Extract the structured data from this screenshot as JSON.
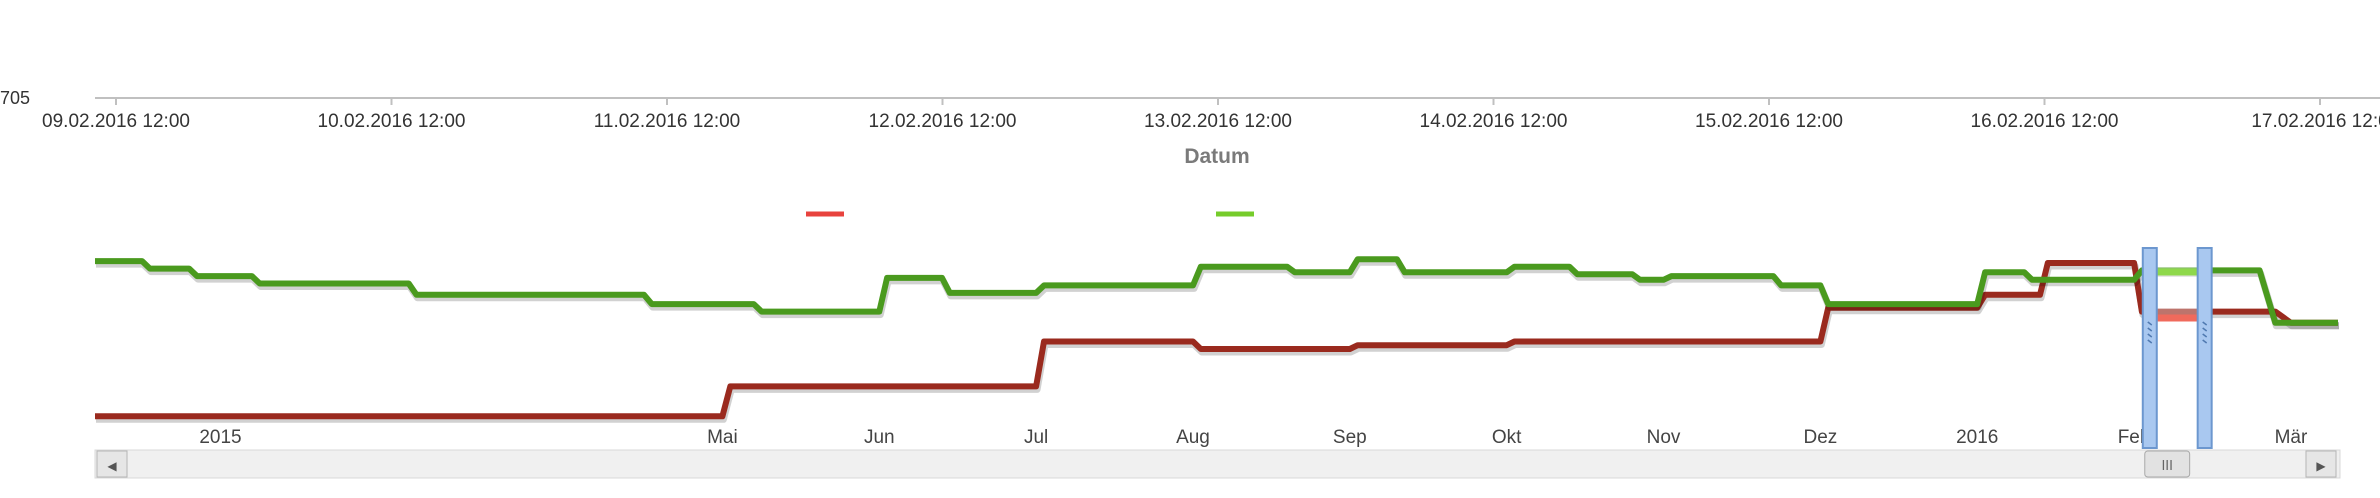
{
  "chart_data": [
    {
      "type": "line",
      "title": "",
      "y_tick_label": "705",
      "x_axis": {
        "title": "Datum",
        "ticks": [
          "09.02.2016 12:00",
          "10.02.2016 12:00",
          "11.02.2016 12:00",
          "12.02.2016 12:00",
          "13.02.2016 12:00",
          "14.02.2016 12:00",
          "15.02.2016 12:00",
          "16.02.2016 12:00",
          "17.02.2016 12:0"
        ]
      },
      "legend": {
        "placement": "top-center",
        "series_colors": [
          "#e8433d",
          "#76cc2b"
        ]
      },
      "series": [
        {
          "color": "#e8433d",
          "values": []
        },
        {
          "color": "#76cc2b",
          "values": []
        }
      ],
      "grid": false
    },
    {
      "type": "line",
      "role": "navigator",
      "x_labels": [
        "2015",
        "Mai",
        "Jun",
        "Jul",
        "Aug",
        "Sep",
        "Okt",
        "Nov",
        "Dez",
        "2016",
        "Feb",
        "Mär"
      ],
      "x_label_positions_months": [
        0.8,
        4.0,
        5.0,
        6.0,
        7.0,
        8.0,
        9.0,
        10.0,
        11.0,
        12.0,
        13.0,
        14.0
      ],
      "x_domain_months": [
        0,
        14.3
      ],
      "y_domain": [
        0,
        100
      ],
      "series": [
        {
          "color": "#9a2a1e",
          "step_points": [
            [
              0,
              10
            ],
            [
              1.6,
              10
            ],
            [
              4.0,
              10
            ],
            [
              4.05,
              26
            ],
            [
              6.0,
              26
            ],
            [
              6.05,
              50
            ],
            [
              7.0,
              50
            ],
            [
              7.05,
              46
            ],
            [
              8.0,
              46
            ],
            [
              8.05,
              48
            ],
            [
              9.0,
              48
            ],
            [
              9.05,
              50
            ],
            [
              11.0,
              50
            ],
            [
              11.05,
              68
            ],
            [
              12.0,
              68
            ],
            [
              12.05,
              75
            ],
            [
              12.4,
              75
            ],
            [
              12.45,
              92
            ],
            [
              13.0,
              92
            ],
            [
              13.05,
              66
            ],
            [
              13.9,
              66
            ],
            [
              14.0,
              60
            ],
            [
              14.3,
              60
            ]
          ]
        },
        {
          "color": "#4a9a1e",
          "step_points": [
            [
              0,
              93
            ],
            [
              0.3,
              93
            ],
            [
              0.35,
              89
            ],
            [
              0.6,
              89
            ],
            [
              0.65,
              85
            ],
            [
              1.0,
              85
            ],
            [
              1.05,
              81
            ],
            [
              2.0,
              81
            ],
            [
              2.05,
              75
            ],
            [
              3.5,
              75
            ],
            [
              3.55,
              70
            ],
            [
              4.2,
              70
            ],
            [
              4.25,
              66
            ],
            [
              5.0,
              66
            ],
            [
              5.05,
              84
            ],
            [
              5.4,
              84
            ],
            [
              5.45,
              76
            ],
            [
              6.0,
              76
            ],
            [
              6.05,
              80
            ],
            [
              7.0,
              80
            ],
            [
              7.05,
              90
            ],
            [
              7.6,
              90
            ],
            [
              7.65,
              87
            ],
            [
              8.0,
              87
            ],
            [
              8.05,
              94
            ],
            [
              8.3,
              94
            ],
            [
              8.35,
              87
            ],
            [
              9.0,
              87
            ],
            [
              9.05,
              90
            ],
            [
              9.4,
              90
            ],
            [
              9.45,
              86
            ],
            [
              9.8,
              86
            ],
            [
              9.85,
              83
            ],
            [
              10.0,
              83
            ],
            [
              10.05,
              85
            ],
            [
              10.7,
              85
            ],
            [
              10.75,
              80
            ],
            [
              11.0,
              80
            ],
            [
              11.05,
              70
            ],
            [
              12.0,
              70
            ],
            [
              12.05,
              87
            ],
            [
              12.3,
              87
            ],
            [
              12.35,
              83
            ],
            [
              13.0,
              83
            ],
            [
              13.05,
              88
            ],
            [
              13.8,
              88
            ],
            [
              13.9,
              60
            ],
            [
              14.3,
              60
            ]
          ]
        }
      ]
    }
  ],
  "scrollbar": {
    "left_arrow": "◀",
    "right_arrow": "▶",
    "thumb_grip": "III",
    "thumb_start_months": 13.1,
    "thumb_end_months": 13.45
  }
}
